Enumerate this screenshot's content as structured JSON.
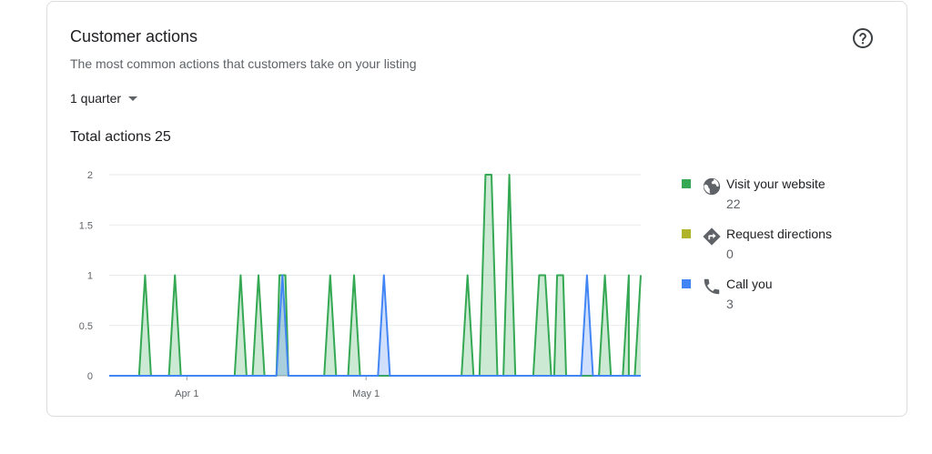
{
  "card": {
    "title": "Customer actions",
    "subtitle": "The most common actions that customers take on your listing",
    "help_icon": "help-circle-icon"
  },
  "period_dropdown": {
    "value": "1 quarter"
  },
  "total": {
    "label": "Total actions",
    "value": "25"
  },
  "legend": [
    {
      "label": "Visit your website",
      "count": "22",
      "color": "#34a853",
      "icon": "globe-icon"
    },
    {
      "label": "Request directions",
      "count": "0",
      "color": "#afb42b",
      "icon": "directions-icon"
    },
    {
      "label": "Call you",
      "count": "3",
      "color": "#4285f4",
      "icon": "phone-icon"
    }
  ],
  "chart_data": {
    "type": "area",
    "ylim": [
      0,
      2
    ],
    "y_ticks": [
      "0",
      "0.5",
      "1",
      "1.5",
      "2"
    ],
    "x_ticks": [
      {
        "label": "Apr 1",
        "day": 13
      },
      {
        "label": "May 1",
        "day": 43
      }
    ],
    "series": [
      {
        "name": "Visit your website",
        "color": "#34a853",
        "points": [
          [
            0,
            0
          ],
          [
            5,
            0
          ],
          [
            6,
            1
          ],
          [
            7,
            0
          ],
          [
            10,
            0
          ],
          [
            11,
            1
          ],
          [
            12,
            0
          ],
          [
            21,
            0
          ],
          [
            22,
            1
          ],
          [
            23,
            0
          ],
          [
            24,
            0
          ],
          [
            25,
            1
          ],
          [
            26,
            0
          ],
          [
            28,
            0
          ],
          [
            28.5,
            1
          ],
          [
            29.5,
            1
          ],
          [
            30,
            0
          ],
          [
            36,
            0
          ],
          [
            37,
            1
          ],
          [
            38,
            0
          ],
          [
            40,
            0
          ],
          [
            41,
            1
          ],
          [
            42,
            0
          ],
          [
            59,
            0
          ],
          [
            60,
            1
          ],
          [
            61,
            0
          ],
          [
            62,
            0
          ],
          [
            63,
            2
          ],
          [
            64,
            2
          ],
          [
            65,
            0
          ],
          [
            66,
            0
          ],
          [
            67,
            2
          ],
          [
            68,
            0
          ],
          [
            71,
            0
          ],
          [
            72,
            1
          ],
          [
            73,
            1
          ],
          [
            74,
            0
          ],
          [
            74.5,
            0
          ],
          [
            75,
            1
          ],
          [
            76,
            1
          ],
          [
            76.5,
            0
          ],
          [
            82,
            0
          ],
          [
            83,
            1
          ],
          [
            84,
            0
          ],
          [
            86,
            0
          ],
          [
            87,
            1
          ],
          [
            87,
            0
          ],
          [
            88,
            0
          ],
          [
            89,
            1
          ]
        ]
      },
      {
        "name": "Call you",
        "color": "#4285f4",
        "points": [
          [
            0,
            0
          ],
          [
            28,
            0
          ],
          [
            29,
            1
          ],
          [
            30,
            0
          ],
          [
            45,
            0
          ],
          [
            46,
            1
          ],
          [
            47,
            0
          ],
          [
            79,
            0
          ],
          [
            80,
            1
          ],
          [
            81,
            0
          ],
          [
            89,
            0
          ]
        ]
      }
    ]
  }
}
